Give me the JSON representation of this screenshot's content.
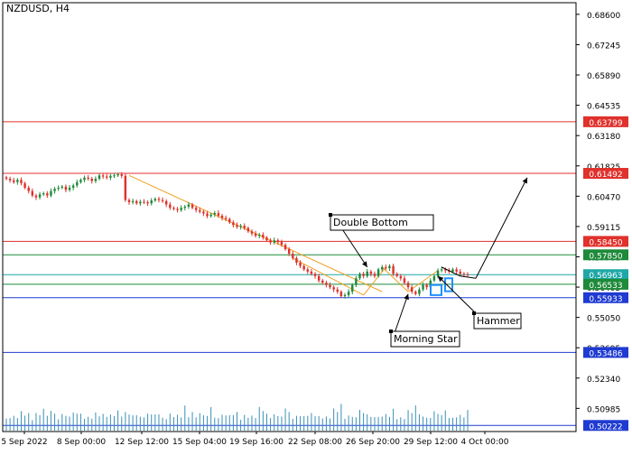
{
  "window": {
    "symbol_label": "NZDUSD, H4"
  },
  "colors": {
    "background": "#ffffff",
    "axis": "#000000",
    "bull_candle": "#1e8a3a",
    "bear_candle": "#e0312c",
    "volume": "#3a8fb7",
    "resistance": "#e0312c",
    "support_green": "#1e8a3a",
    "support_blue": "#1f3bd1",
    "current_line": "#1fa7a7",
    "trendline": "#f0a020"
  },
  "chart_data": {
    "type": "candlestick",
    "title": "NZDUSD, H4",
    "ylim": [
      0.4995,
      0.6912
    ],
    "y_ticks": [
      "0.68600",
      "0.67245",
      "0.65890",
      "0.64535",
      "0.63180",
      "0.61825",
      "0.60470",
      "0.59115",
      "0.57760",
      "0.56405",
      "0.55050",
      "0.53695",
      "0.52340",
      "0.50985"
    ],
    "x_ticks": [
      "5 Sep 2022",
      "8 Sep 00:00",
      "12 Sep 12:00",
      "15 Sep 04:00",
      "19 Sep 16:00",
      "22 Sep 08:00",
      "26 Sep 20:00",
      "29 Sep 12:00",
      "4 Oct 00:00"
    ],
    "bar_count": 125,
    "closes": [
      0.6125,
      0.6118,
      0.611,
      0.612,
      0.6105,
      0.6085,
      0.607,
      0.605,
      0.6042,
      0.6055,
      0.606,
      0.605,
      0.607,
      0.608,
      0.6085,
      0.609,
      0.6075,
      0.6085,
      0.6095,
      0.611,
      0.612,
      0.613,
      0.6125,
      0.6115,
      0.6125,
      0.614,
      0.6135,
      0.613,
      0.6138,
      0.614,
      0.6145,
      0.6138,
      0.603,
      0.602,
      0.6025,
      0.6015,
      0.6022,
      0.602,
      0.6015,
      0.6028,
      0.6035,
      0.603,
      0.6025,
      0.601,
      0.5995,
      0.599,
      0.5985,
      0.5995,
      0.6,
      0.601,
      0.5995,
      0.5985,
      0.5978,
      0.597,
      0.5958,
      0.5965,
      0.5972,
      0.596,
      0.595,
      0.5945,
      0.593,
      0.5918,
      0.591,
      0.5915,
      0.5905,
      0.589,
      0.588,
      0.587,
      0.5875,
      0.5862,
      0.585,
      0.584,
      0.585,
      0.5842,
      0.583,
      0.581,
      0.579,
      0.577,
      0.575,
      0.5735,
      0.572,
      0.571,
      0.57,
      0.569,
      0.567,
      0.566,
      0.565,
      0.564,
      0.563,
      0.562,
      0.56,
      0.5605,
      0.562,
      0.565,
      0.568,
      0.57,
      0.569,
      0.571,
      0.57,
      0.569,
      0.572,
      0.573,
      0.5725,
      0.5735,
      0.57,
      0.569,
      0.568,
      0.566,
      0.564,
      0.562,
      0.561,
      0.563,
      0.565,
      0.564,
      0.567,
      0.569,
      0.5715,
      0.572,
      0.5715,
      0.571,
      0.572,
      0.571,
      0.57,
      0.5697,
      0.5696
    ],
    "volume_profile": [
      0.3,
      0.28,
      0.35,
      0.22,
      0.45,
      0.26,
      0.32,
      0.2,
      0.55,
      0.38,
      0.6,
      0.28,
      0.42,
      0.3,
      0.25,
      0.5,
      0.35,
      0.28,
      0.4,
      0.33
    ],
    "price_lines": [
      {
        "role": "resistance",
        "value": 0.63799,
        "label": "0.63799"
      },
      {
        "role": "resistance",
        "value": 0.61492,
        "label": "0.61492"
      },
      {
        "role": "resistance",
        "value": 0.5845,
        "label": "0.58450"
      },
      {
        "role": "support_green",
        "value": 0.5785,
        "label": "0.57850"
      },
      {
        "role": "current",
        "value": 0.56963,
        "label": "0.56963"
      },
      {
        "role": "support_green",
        "value": 0.56533,
        "label": "0.56533"
      },
      {
        "role": "support_blue",
        "value": 0.55933,
        "label": "0.55933"
      },
      {
        "role": "support_blue",
        "value": 0.53486,
        "label": "0.53486"
      },
      {
        "role": "support_blue",
        "value": 0.50222,
        "label": "0.50222"
      }
    ],
    "annotations": [
      {
        "text": "Double Bottom"
      },
      {
        "text": "Morning Star"
      },
      {
        "text": "Hammer"
      }
    ]
  }
}
